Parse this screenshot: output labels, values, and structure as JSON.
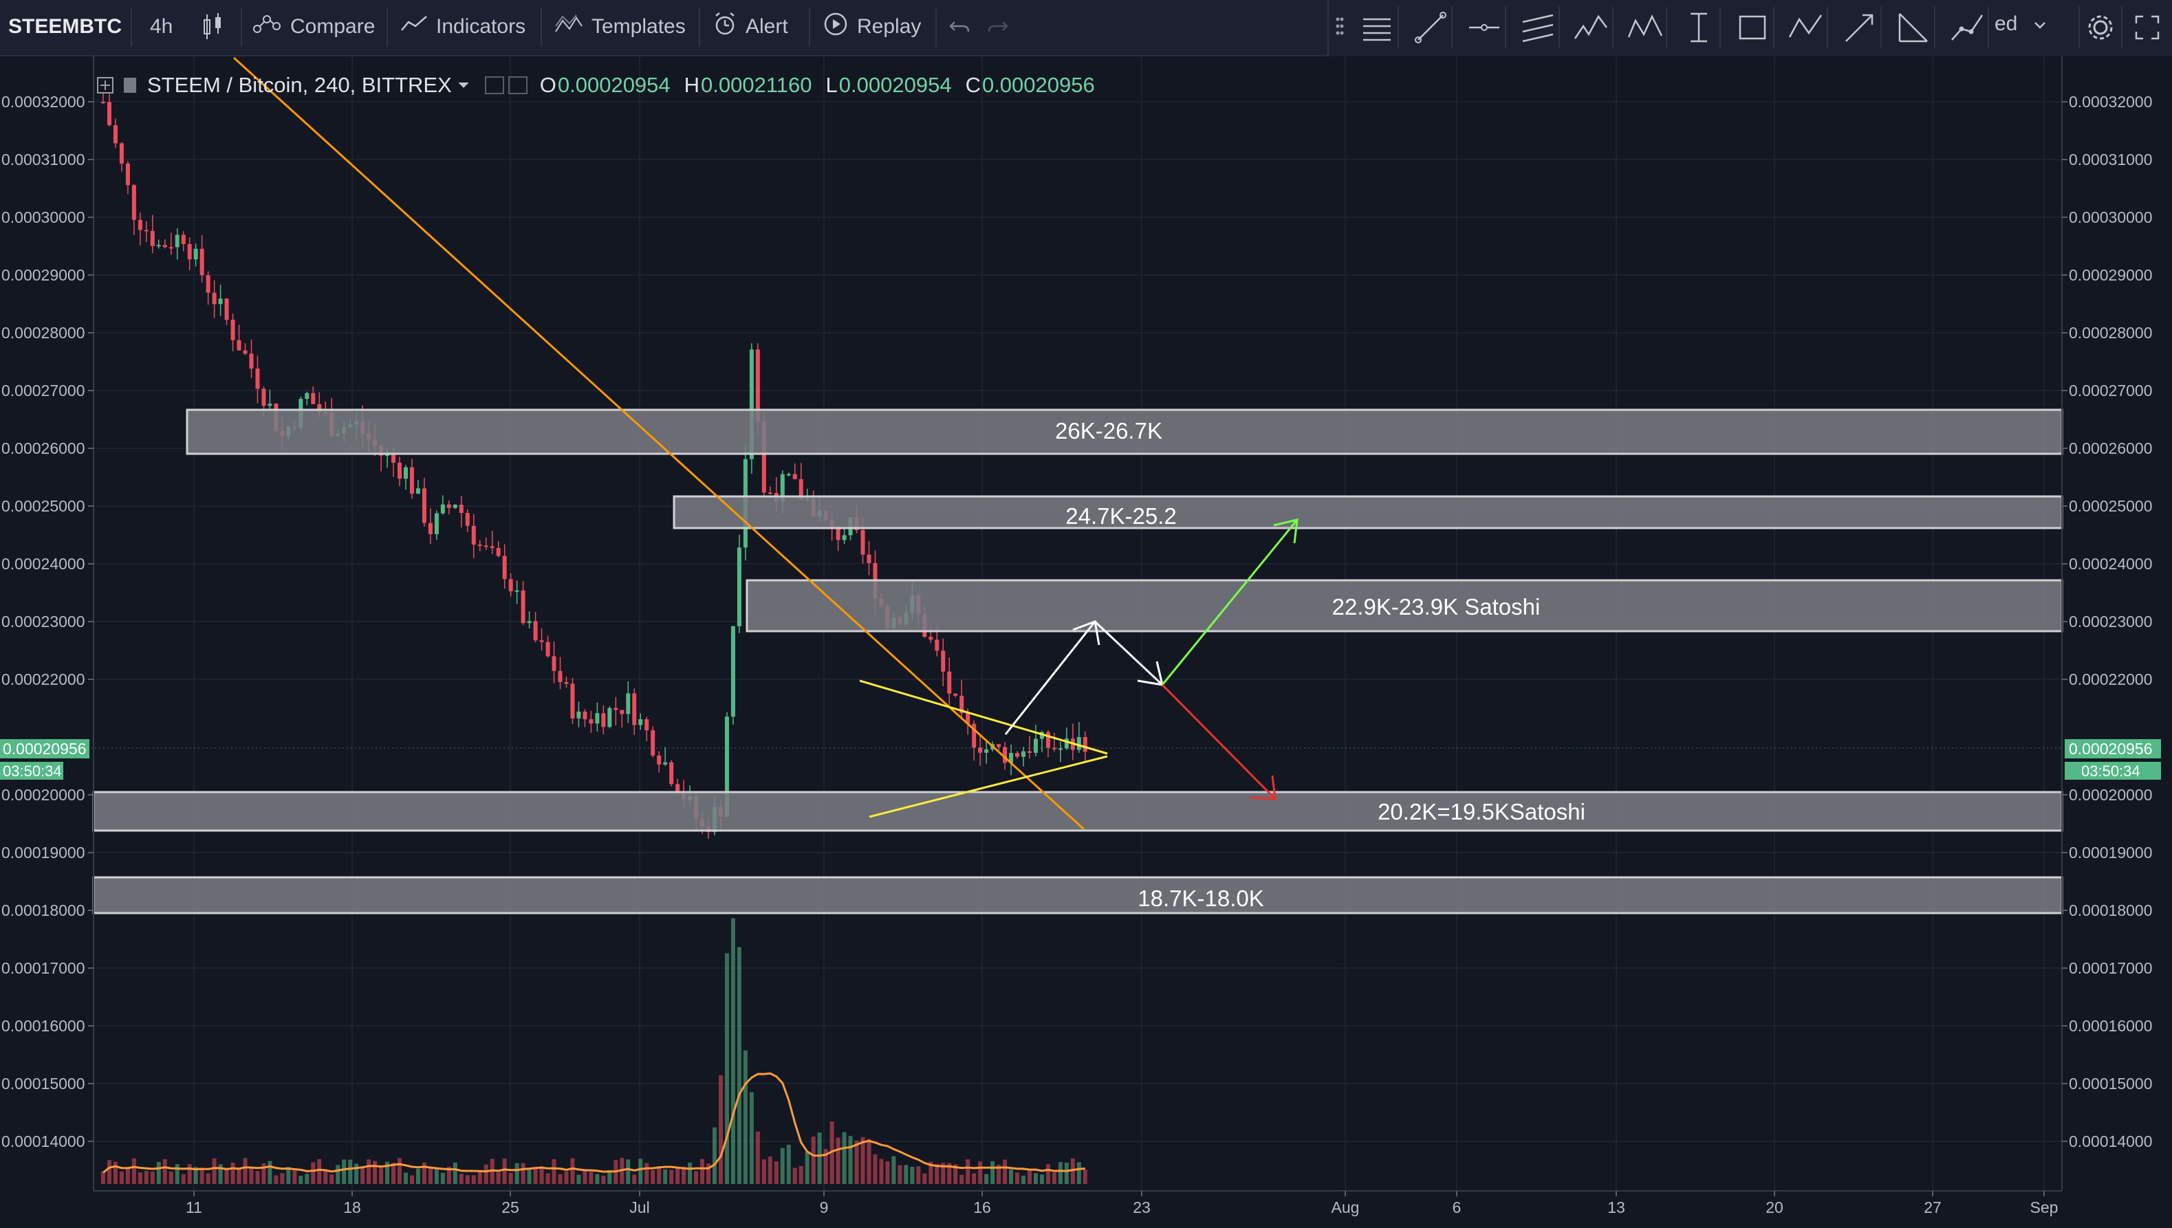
{
  "toolbar": {
    "symbol": "STEEMBTC",
    "interval": "4h",
    "compare": "Compare",
    "indicators": "Indicators",
    "templates": "Templates",
    "alert": "Alert",
    "replay": "Replay",
    "layout_label": "ed"
  },
  "legend": {
    "title": "STEEM / Bitcoin, 240, BITTREX",
    "o_label": "O",
    "o": "0.00020954",
    "h_label": "H",
    "h": "0.00021160",
    "l_label": "L",
    "l": "0.00020954",
    "c_label": "C",
    "c": "0.00020956"
  },
  "price_axis": [
    "0.00032000",
    "0.00031000",
    "0.00030000",
    "0.00029000",
    "0.00028000",
    "0.00027000",
    "0.00026000",
    "0.00025000",
    "0.00024000",
    "0.00023000",
    "0.00022000",
    "0.00020000",
    "0.00019000",
    "0.00018000",
    "0.00017000",
    "0.00016000",
    "0.00015000",
    "0.00014000"
  ],
  "last_price": "0.00020956",
  "countdown": "03:50:34",
  "date_axis": [
    "11",
    "18",
    "25",
    "Jul",
    "9",
    "16",
    "23",
    "Aug",
    "6",
    "13",
    "20",
    "27",
    "Sep"
  ],
  "zones": [
    {
      "label": "26K-26.7K"
    },
    {
      "label": "24.7K-25.2"
    },
    {
      "label": "22.9K-23.9K Satoshi"
    },
    {
      "label": "20.2K=19.5KSatoshi"
    },
    {
      "label": "18.7K-18.0K"
    }
  ],
  "colors": {
    "background": "#131722",
    "up": "#53b987",
    "down": "#eb4d5c",
    "trendline": "#ff9800",
    "triangle": "#ffeb3b",
    "bull_arrow": "#7cfc4c",
    "bear_arrow": "#e8322b",
    "zone_fill": "#7a7c82"
  },
  "chart_data": {
    "type": "candlestick",
    "ylim": [
      0.000134,
      0.000325
    ],
    "price_series": [
      [
        1,
        0.00032
      ],
      [
        6,
        0.000301
      ],
      [
        10,
        0.000295
      ],
      [
        14,
        0.000297
      ],
      [
        18,
        0.000288
      ],
      [
        22,
        0.00028
      ],
      [
        26,
        0.000272
      ],
      [
        30,
        0.000262
      ],
      [
        34,
        0.000269
      ],
      [
        38,
        0.000264
      ],
      [
        42,
        0.000264
      ],
      [
        46,
        0.000259
      ],
      [
        50,
        0.000256
      ],
      [
        54,
        0.000246
      ],
      [
        58,
        0.000251
      ],
      [
        62,
        0.000243
      ],
      [
        66,
        0.000239
      ],
      [
        70,
        0.000228
      ],
      [
        74,
        0.000222
      ],
      [
        78,
        0.000213
      ],
      [
        82,
        0.000214
      ],
      [
        86,
        0.000216
      ],
      [
        90,
        0.000209
      ],
      [
        94,
        0.000202
      ],
      [
        98,
        0.000194
      ],
      [
        101,
        0.000198
      ],
      [
        103,
        0.00023
      ],
      [
        105,
        0.00026
      ],
      [
        106,
        0.000278
      ],
      [
        108,
        0.000252
      ],
      [
        112,
        0.000254
      ],
      [
        116,
        0.00025
      ],
      [
        119,
        0.000245
      ],
      [
        122,
        0.000246
      ],
      [
        125,
        0.000239
      ],
      [
        128,
        0.00023
      ],
      [
        132,
        0.000233
      ],
      [
        136,
        0.000224
      ],
      [
        140,
        0.000212
      ],
      [
        144,
        0.000208
      ],
      [
        148,
        0.000207
      ],
      [
        152,
        0.000209
      ],
      [
        156,
        0.000208
      ],
      [
        160,
        0.0002096
      ]
    ],
    "volume_peak_x": 103
  }
}
